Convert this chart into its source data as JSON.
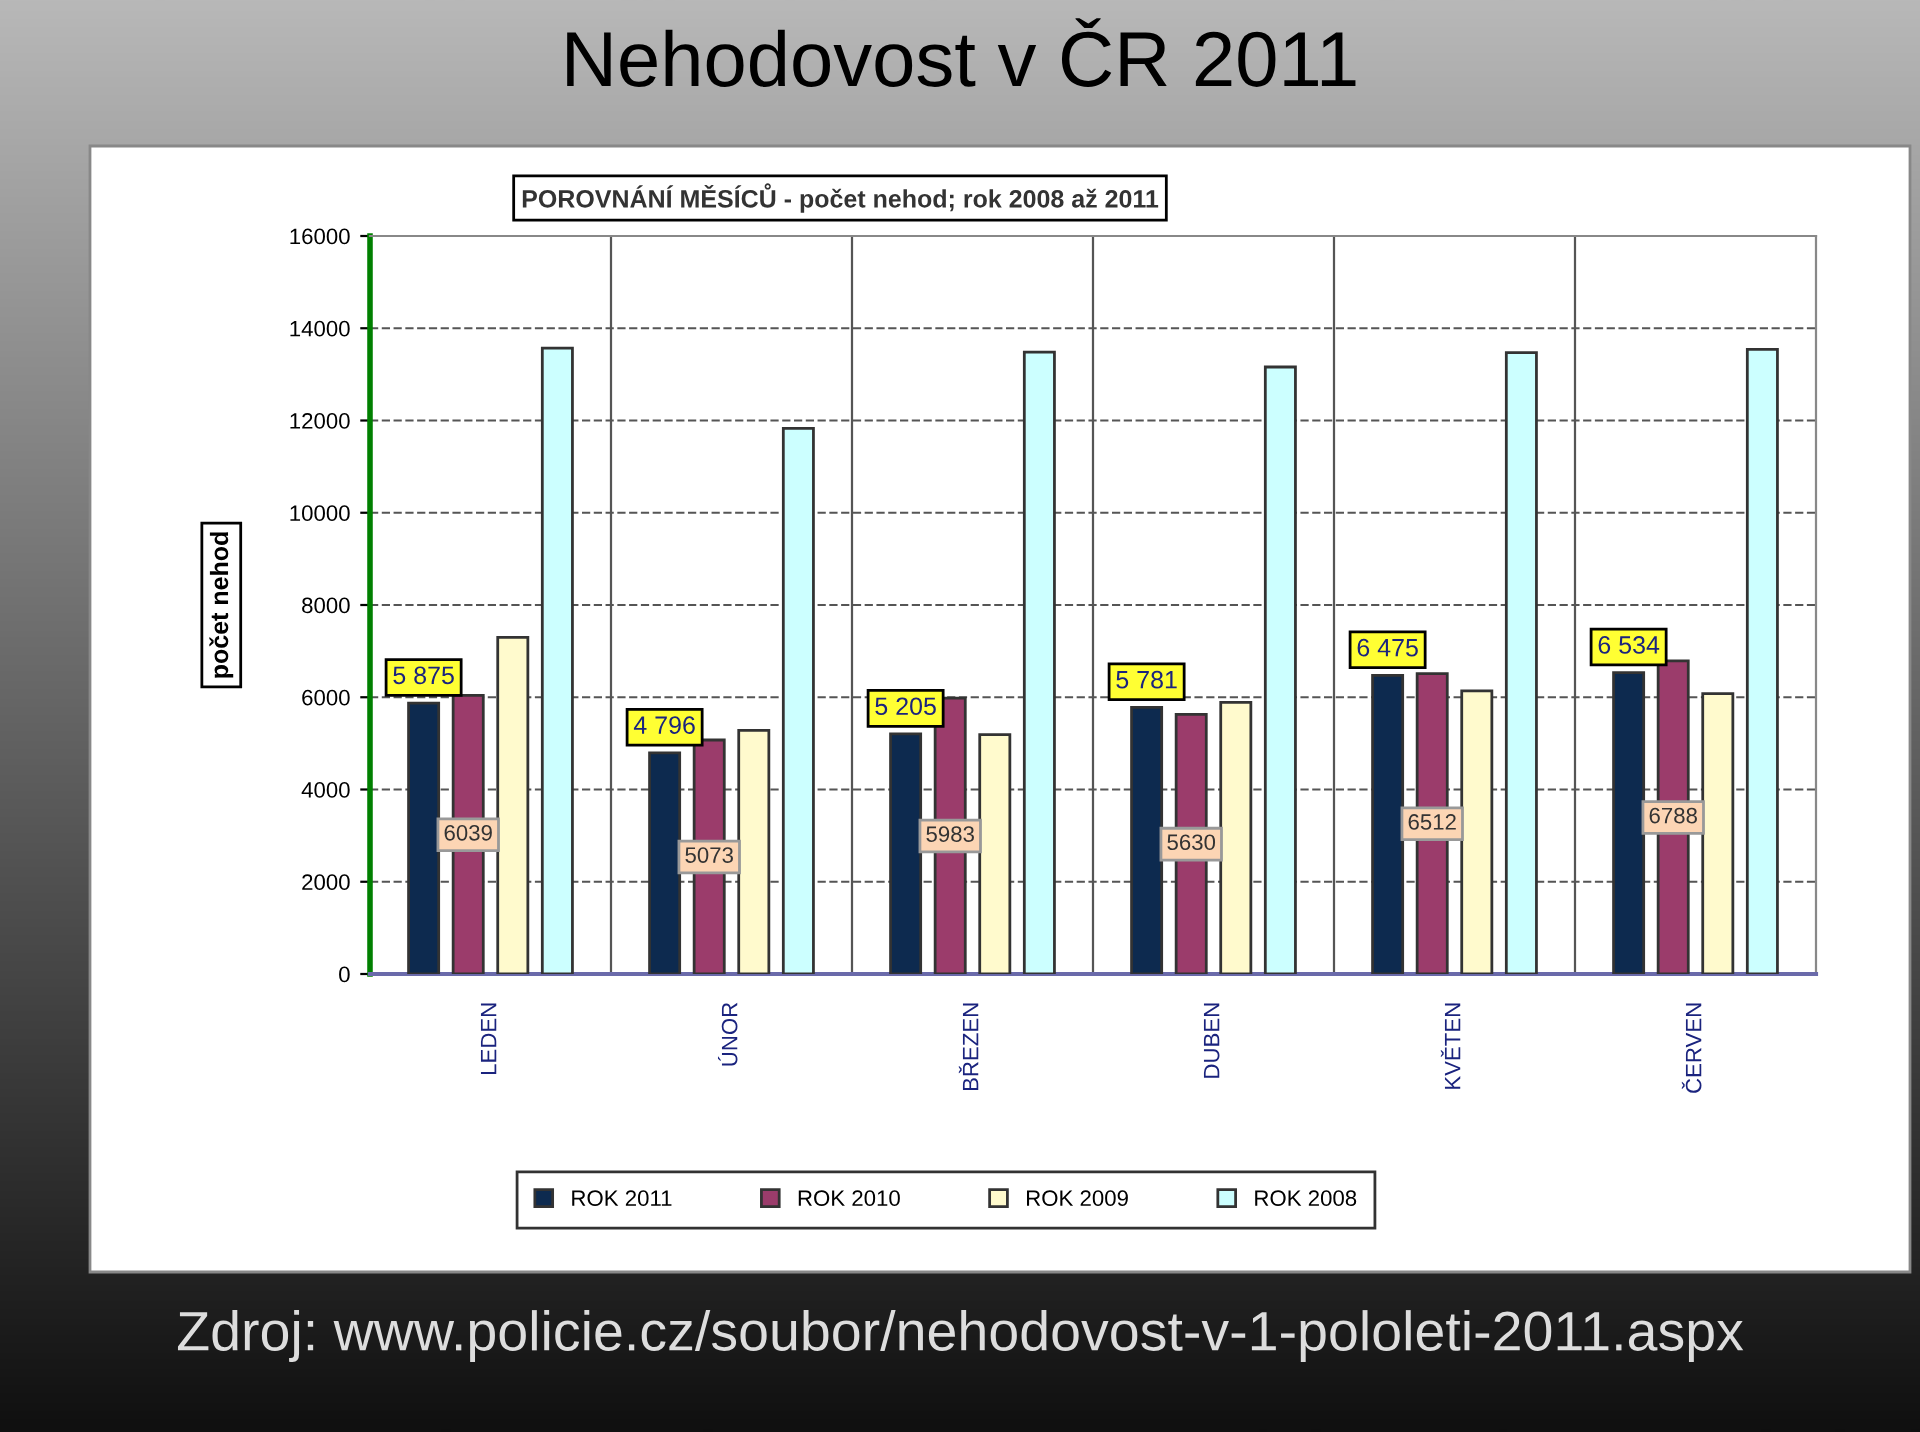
{
  "chart_data": {
    "type": "bar",
    "title": "Nehodovost v ČR 2011",
    "subtitle": "POROVNÁNÍ MĚSÍCŮ - počet nehod; rok 2008 až 2011",
    "ylabel": "počet nehod",
    "categories": [
      "LEDEN",
      "ÚNOR",
      "BŘEZEN",
      "DUBEN",
      "KVĚTEN",
      "ČERVEN"
    ],
    "series": [
      {
        "name": "ROK 2011",
        "color": "#0d2a4f",
        "values": [
          5875,
          4796,
          5205,
          5781,
          6475,
          6534
        ],
        "value_labels": [
          "5 875",
          "4 796",
          "5 205",
          "5 781",
          "6 475",
          "6 534"
        ]
      },
      {
        "name": "ROK 2010",
        "color": "#9b3c6b",
        "values": [
          6039,
          5073,
          5983,
          5630,
          6512,
          6788
        ],
        "value_labels": [
          "6039",
          "5073",
          "5983",
          "5630",
          "6512",
          "6788"
        ]
      },
      {
        "name": "ROK 2009",
        "color": "#fffacd",
        "values": [
          7300,
          5280,
          5190,
          5890,
          6140,
          6080
        ]
      },
      {
        "name": "ROK 2008",
        "color": "#ccffff",
        "values": [
          13570,
          11830,
          13480,
          13160,
          13470,
          13540
        ]
      }
    ],
    "ylim": [
      0,
      16000
    ],
    "yticks": [
      0,
      2000,
      4000,
      6000,
      8000,
      10000,
      12000,
      14000,
      16000
    ],
    "grid": true,
    "legend": "bottom",
    "annotations": [
      "Zdroj: www.policie.cz/soubor/nehodovost-v-1-pololeti-2011.aspx"
    ]
  }
}
